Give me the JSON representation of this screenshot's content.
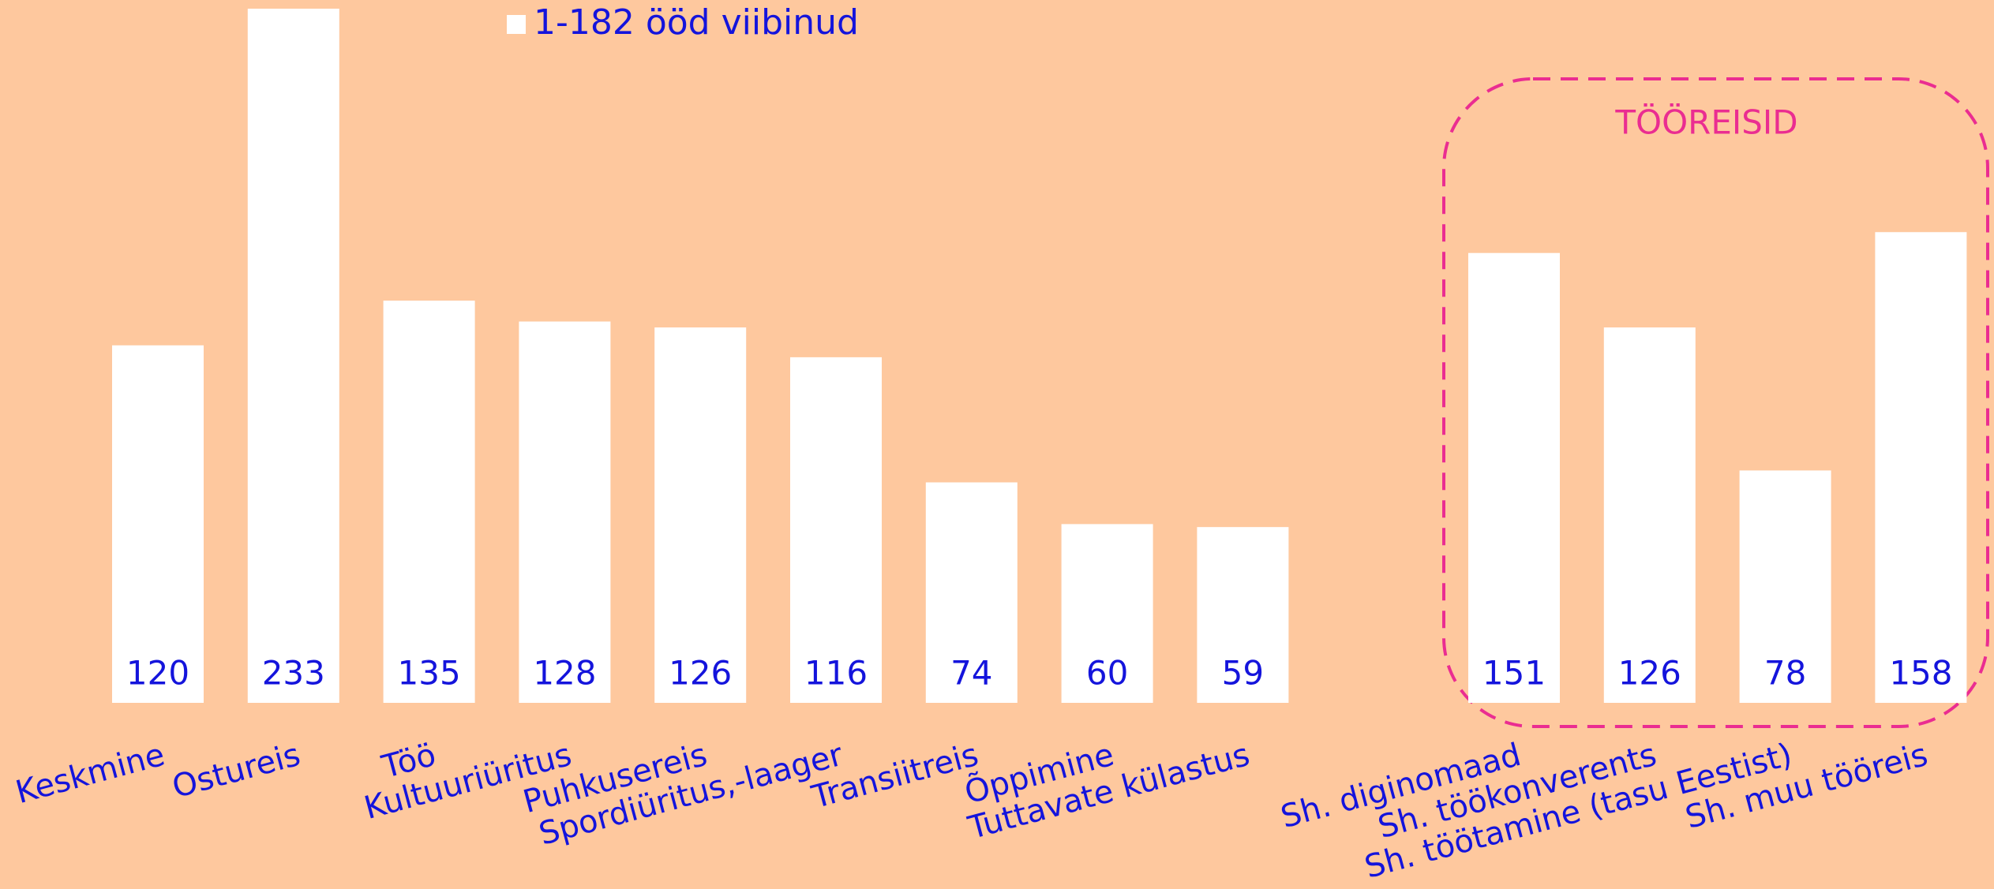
{
  "chart_data": {
    "type": "bar",
    "categories": [
      "Keskmine",
      "Ostureis",
      "Töö",
      "Kultuuriüritus",
      "Puhkusereis",
      "Spordiüritus,-laager",
      "Transiitreis",
      "Õppimine",
      "Tuttavate külastus",
      null,
      "Sh. diginomaad",
      "Sh. töökonverents",
      "Sh. töötamine (tasu Eestist)",
      "Sh. muu tööreis"
    ],
    "series": [
      {
        "name": "1-182 ööd viibinud",
        "color": "#ffffff",
        "values": [
          120,
          233,
          135,
          128,
          126,
          116,
          74,
          60,
          59,
          null,
          151,
          126,
          78,
          158
        ]
      }
    ],
    "annotation": "TÖÖREISID",
    "background": "#fec89e",
    "label_color": "#1414dc",
    "annotation_color": "#ea2d91"
  }
}
